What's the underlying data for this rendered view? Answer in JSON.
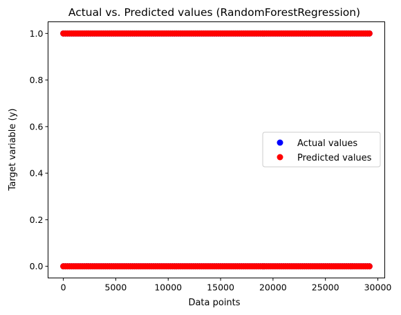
{
  "chart_data": {
    "type": "scatter",
    "title": "Actual vs. Predicted values (RandomForestRegression)",
    "xlabel": "Data points",
    "ylabel": "Target variable (y)",
    "xlim": [
      -1460,
      30660
    ],
    "ylim": [
      -0.05,
      1.05
    ],
    "xticks": [
      0,
      5000,
      10000,
      15000,
      20000,
      25000,
      30000
    ],
    "xtick_labels": [
      "0",
      "5000",
      "10000",
      "15000",
      "20000",
      "25000",
      "30000"
    ],
    "yticks": [
      0.0,
      0.2,
      0.4,
      0.6,
      0.8,
      1.0
    ],
    "ytick_labels": [
      "0.0",
      "0.2",
      "0.4",
      "0.6",
      "0.8",
      "1.0"
    ],
    "x_range": [
      0,
      29200
    ],
    "levels": [
      0,
      1
    ],
    "grid": false,
    "legend_position": "center-right",
    "series": [
      {
        "name": "Actual values",
        "color": "#0000ff"
      },
      {
        "name": "Predicted values",
        "color": "#ff0000"
      }
    ]
  }
}
